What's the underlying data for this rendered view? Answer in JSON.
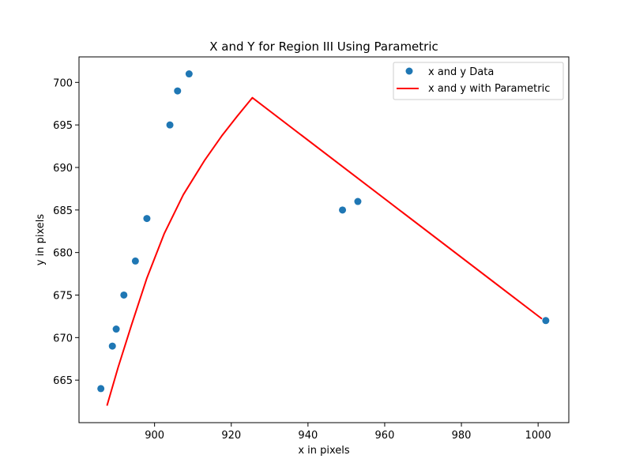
{
  "chart_data": {
    "type": "scatter",
    "title": "X and Y for Region III Using Parametric",
    "xlabel": "x in pixels",
    "ylabel": "y in pixels",
    "xlim": [
      880.3,
      1008.0
    ],
    "ylim": [
      660.0,
      703.0
    ],
    "xticks": [
      900,
      920,
      940,
      960,
      980,
      1000
    ],
    "yticks": [
      665,
      670,
      675,
      680,
      685,
      690,
      695,
      700
    ],
    "grid": false,
    "legend_position": "upper right",
    "series": [
      {
        "name": "x and y Data",
        "kind": "scatter",
        "color": "#1f77b4",
        "points": [
          {
            "x": 886,
            "y": 664
          },
          {
            "x": 889,
            "y": 669
          },
          {
            "x": 890,
            "y": 671
          },
          {
            "x": 892,
            "y": 675
          },
          {
            "x": 895,
            "y": 679
          },
          {
            "x": 898,
            "y": 684
          },
          {
            "x": 904,
            "y": 695
          },
          {
            "x": 906,
            "y": 699
          },
          {
            "x": 909,
            "y": 701
          },
          {
            "x": 949,
            "y": 685
          },
          {
            "x": 953,
            "y": 686
          },
          {
            "x": 1002,
            "y": 672
          }
        ]
      },
      {
        "name": "x and y with Parametric",
        "kind": "line",
        "color": "#ff0000",
        "points": [
          {
            "x": 887.6,
            "y": 662.0
          },
          {
            "x": 890.5,
            "y": 666.5
          },
          {
            "x": 894.0,
            "y": 671.5
          },
          {
            "x": 898.0,
            "y": 677.0
          },
          {
            "x": 902.5,
            "y": 682.2
          },
          {
            "x": 907.5,
            "y": 686.8
          },
          {
            "x": 913.0,
            "y": 690.8
          },
          {
            "x": 917.5,
            "y": 693.7
          },
          {
            "x": 921.5,
            "y": 696.0
          },
          {
            "x": 925.5,
            "y": 698.2
          },
          {
            "x": 1001.0,
            "y": 672.2
          }
        ]
      }
    ]
  }
}
